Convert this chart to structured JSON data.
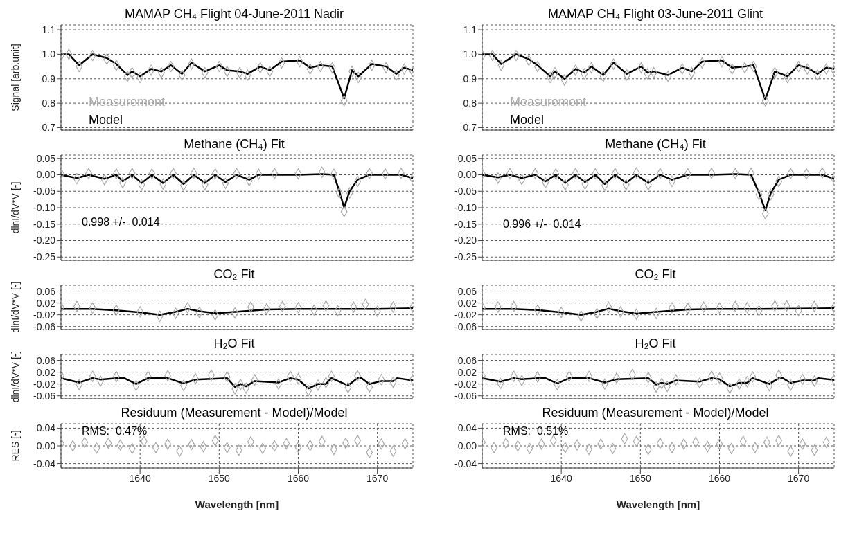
{
  "chart_data": [
    {
      "type": "line",
      "title": "MAMAP CH₄ Flight 04-June-2011 Nadir",
      "ylabel": "Signal [arb.unit]",
      "xlim": [
        1630,
        1674.5
      ],
      "xticks": [
        1640,
        1650,
        1660,
        1670
      ],
      "ylim": [
        0.69,
        1.12
      ],
      "yticks": [
        0.7,
        0.8,
        0.9,
        {
          "value": 1,
          "label": "1.0"
        },
        1.1
      ],
      "grid": true,
      "tick_labels": "y",
      "legend": "bottom left",
      "series": [
        {
          "name": "Measurement",
          "type": "scatter",
          "marker": "diamond",
          "color": "#a8a8a8",
          "x": [
            1630,
            1631,
            1632.3,
            1634,
            1635.8,
            1637,
            1638.4,
            1639,
            1640,
            1641.4,
            1642.7,
            1643.9,
            1645.3,
            1646.5,
            1648.2,
            1650,
            1651,
            1652.6,
            1653.6,
            1655.2,
            1656.4,
            1657.9,
            1660.2,
            1661.5,
            1662.8,
            1664.3,
            1665.8,
            1666.8,
            1667.6,
            1669.3,
            1671.1,
            1672.4,
            1673.4,
            1674.5
          ],
          "values": [
            0.995,
            1.0,
            0.95,
            0.995,
            0.98,
            0.955,
            0.91,
            0.925,
            0.905,
            0.935,
            0.925,
            0.95,
            0.915,
            0.96,
            0.925,
            0.95,
            0.93,
            0.925,
            0.915,
            0.945,
            0.93,
            0.965,
            0.97,
            0.94,
            0.95,
            0.945,
            0.81,
            0.93,
            0.905,
            0.955,
            0.945,
            0.915,
            0.94,
            0.93
          ]
        },
        {
          "name": "Model",
          "type": "line",
          "color": "#000000",
          "x": [
            1630,
            1631,
            1632.3,
            1634,
            1635.8,
            1637,
            1638.4,
            1639,
            1640,
            1641.4,
            1642.7,
            1643.9,
            1645.3,
            1646.5,
            1648.2,
            1650,
            1651,
            1652.6,
            1653.6,
            1655.2,
            1656.4,
            1657.9,
            1660.2,
            1661.5,
            1662.8,
            1664.3,
            1665.8,
            1666.8,
            1667.6,
            1669.3,
            1671.1,
            1672.4,
            1673.4,
            1674.5
          ],
          "values": [
            1.0,
            1.0,
            0.955,
            1.0,
            0.985,
            0.96,
            0.915,
            0.93,
            0.91,
            0.94,
            0.93,
            0.955,
            0.92,
            0.965,
            0.93,
            0.955,
            0.935,
            0.93,
            0.92,
            0.95,
            0.935,
            0.97,
            0.975,
            0.945,
            0.955,
            0.95,
            0.82,
            0.935,
            0.91,
            0.96,
            0.95,
            0.92,
            0.945,
            0.935
          ]
        }
      ]
    },
    {
      "type": "line",
      "title": "Methane (CH₄) Fit",
      "ylabel": "dlnI/dV*V [-]",
      "xlim": [
        1630,
        1674.5
      ],
      "xticks": [
        1640,
        1650,
        1660,
        1670
      ],
      "ylim": [
        -0.26,
        0.06
      ],
      "yticks": [
        0.05,
        {
          "value": 0,
          "label": "0.00"
        },
        -0.05,
        {
          "value": -0.1,
          "label": "-0.10"
        },
        -0.15,
        {
          "value": -0.2,
          "label": "-0.20"
        },
        -0.25
      ],
      "grid": true,
      "tick_labels": "y",
      "annotations": [
        "0.998 +/-  0.014"
      ],
      "series": [
        {
          "type": "scatter",
          "marker": "diamond",
          "color": "#a8a8a8",
          "x": [
            1630,
            1632,
            1633.5,
            1635.5,
            1637,
            1637.8,
            1639,
            1640.2,
            1641.5,
            1642.9,
            1644.2,
            1645.5,
            1646.8,
            1648.2,
            1649.5,
            1650.8,
            1652.2,
            1653.8,
            1655,
            1657,
            1660,
            1663,
            1664.5,
            1665.2,
            1665.8,
            1666.5,
            1667.5,
            1669,
            1671,
            1673,
            1674.5
          ],
          "values": [
            0.003,
            -0.012,
            0.004,
            -0.015,
            0.003,
            -0.024,
            0.004,
            -0.03,
            0.003,
            -0.028,
            0.004,
            -0.032,
            0.005,
            -0.03,
            0.003,
            -0.026,
            0.004,
            -0.018,
            0.002,
            0.004,
            0.003,
            0.008,
            0.002,
            -0.055,
            -0.112,
            -0.055,
            -0.02,
            0.004,
            0.003,
            0.005,
            -0.012
          ]
        },
        {
          "type": "line",
          "color": "#000000",
          "x": [
            1630,
            1632,
            1633.5,
            1635.5,
            1637,
            1637.8,
            1639,
            1640.2,
            1641.5,
            1642.9,
            1644.2,
            1645.5,
            1646.8,
            1648.2,
            1649.5,
            1650.8,
            1652.2,
            1653.8,
            1655,
            1657,
            1660,
            1663,
            1664.5,
            1665.2,
            1665.8,
            1666.5,
            1667.5,
            1669,
            1671,
            1673,
            1674.5
          ],
          "values": [
            0,
            -0.01,
            0,
            -0.012,
            0,
            -0.02,
            0,
            -0.025,
            0,
            -0.025,
            0,
            -0.028,
            0,
            -0.025,
            0,
            -0.022,
            0,
            -0.015,
            0,
            0,
            0,
            0.002,
            0,
            -0.05,
            -0.1,
            -0.05,
            -0.015,
            0,
            0,
            0,
            -0.01
          ]
        }
      ]
    },
    {
      "type": "line",
      "title": "CO₂ Fit",
      "ylabel": "dlnI/dV*V [-]",
      "xlim": [
        1630,
        1674.5
      ],
      "xticks": [
        1640,
        1650,
        1660,
        1670
      ],
      "ylim": [
        -0.07,
        0.08
      ],
      "yticks": [
        0.06,
        0.02,
        -0.02,
        -0.06
      ],
      "grid": true,
      "tick_labels": "y",
      "series": [
        {
          "type": "scatter",
          "marker": "diamond",
          "color": "#a8a8a8",
          "x": [
            1630,
            1632,
            1634,
            1637,
            1640,
            1642.5,
            1644.5,
            1646,
            1647.5,
            1649.5,
            1652,
            1654,
            1656,
            1658,
            1660,
            1662,
            1663.5,
            1665,
            1667,
            1668.5,
            1670,
            1672,
            1674.5
          ],
          "values": [
            0.005,
            0.008,
            0.003,
            -0.004,
            -0.01,
            -0.025,
            -0.015,
            0.004,
            -0.012,
            -0.02,
            -0.014,
            0.006,
            0.0,
            0.008,
            0.004,
            -0.004,
            0.01,
            -0.006,
            0.006,
            0.015,
            -0.008,
            0.006,
            0.005
          ]
        },
        {
          "type": "line",
          "color": "#000000",
          "x": [
            1630,
            1634,
            1637,
            1640,
            1642.5,
            1644.5,
            1646,
            1647.5,
            1649.5,
            1652,
            1656,
            1660,
            1665,
            1670,
            1674.5
          ],
          "values": [
            0,
            0,
            -0.005,
            -0.012,
            -0.02,
            -0.01,
            0,
            -0.008,
            -0.015,
            -0.01,
            -0.002,
            0,
            0,
            0,
            0.002
          ]
        }
      ]
    },
    {
      "type": "line",
      "title": "H₂O Fit",
      "ylabel": "dlnI/dV*V [-]",
      "xlim": [
        1630,
        1674.5
      ],
      "xticks": [
        1640,
        1650,
        1660,
        1670
      ],
      "ylim": [
        -0.07,
        0.08
      ],
      "yticks": [
        0.06,
        0.02,
        -0.02,
        -0.06
      ],
      "grid": true,
      "tick_labels": "y",
      "series": [
        {
          "type": "scatter",
          "marker": "diamond",
          "color": "#a8a8a8",
          "x": [
            1630,
            1632.3,
            1634,
            1635,
            1637,
            1639.5,
            1641,
            1643.5,
            1645.5,
            1647,
            1649,
            1651,
            1652,
            1652.7,
            1653.4,
            1654.5,
            1657.5,
            1659,
            1660,
            1661.3,
            1662.5,
            1663.5,
            1664.2,
            1666.3,
            1667.5,
            1669,
            1670.5,
            1672,
            1674.5
          ],
          "values": [
            0.008,
            -0.022,
            0.006,
            -0.01,
            0.005,
            -0.025,
            0.006,
            0.008,
            -0.025,
            -0.002,
            0.01,
            0.004,
            -0.036,
            -0.022,
            -0.034,
            -0.006,
            -0.02,
            0.006,
            -0.002,
            -0.042,
            -0.024,
            -0.015,
            0.006,
            -0.032,
            0.008,
            -0.03,
            -0.005,
            -0.014,
            -0.004
          ]
        },
        {
          "type": "line",
          "color": "#000000",
          "x": [
            1630,
            1632.3,
            1634,
            1635,
            1637,
            1638,
            1639.5,
            1641,
            1643.5,
            1645.5,
            1647,
            1651,
            1652,
            1652.7,
            1653.4,
            1654.5,
            1657.5,
            1659,
            1660,
            1661.3,
            1662.5,
            1663.5,
            1664.2,
            1666.3,
            1667.5,
            1668,
            1669,
            1670.5,
            1672,
            1672.5,
            1674.5
          ],
          "values": [
            0,
            -0.015,
            0,
            -0.005,
            0,
            0,
            -0.02,
            0,
            0,
            -0.018,
            -0.005,
            0,
            -0.03,
            -0.02,
            -0.028,
            -0.01,
            -0.015,
            0,
            -0.005,
            -0.035,
            -0.02,
            -0.02,
            0,
            -0.025,
            0,
            0,
            -0.02,
            -0.01,
            -0.01,
            0,
            -0.008
          ]
        }
      ]
    },
    {
      "type": "line",
      "title": "Residuum (Measurement - Model)/Model",
      "ylabel": "RES [-]",
      "xlabel": "Wavelength [nm]",
      "xlim": [
        1630,
        1674.5
      ],
      "xticks": [
        1640,
        1650,
        1660,
        1670
      ],
      "ylim": [
        -0.05,
        0.05
      ],
      "yticks": [
        0.04,
        {
          "value": 0,
          "label": "0.00"
        },
        -0.04
      ],
      "grid": true,
      "annotations": [
        "RMS:  0.47%"
      ],
      "series": [
        {
          "type": "scatter",
          "marker": "diamond",
          "color": "#a8a8a8",
          "x": [
            1630,
            1631.5,
            1633,
            1634.5,
            1636,
            1637.5,
            1639,
            1640.5,
            1642,
            1643.5,
            1645,
            1646.5,
            1648,
            1649.5,
            1651,
            1652.5,
            1654,
            1655.5,
            1657,
            1658.5,
            1660,
            1661.5,
            1663,
            1664.5,
            1666,
            1667.5,
            1669,
            1670.5,
            1672,
            1673.5
          ],
          "values": [
            0.005,
            0.0,
            0.008,
            -0.005,
            0.006,
            0.002,
            -0.006,
            0.01,
            -0.004,
            0.004,
            -0.012,
            0.003,
            -0.002,
            0.012,
            -0.004,
            -0.01,
            0.009,
            -0.006,
            0.0,
            0.005,
            -0.003,
            0.001,
            0.01,
            -0.008,
            0.006,
            0.012,
            -0.015,
            0.004,
            -0.012,
            0.005
          ]
        }
      ]
    },
    {
      "type": "line",
      "title": "MAMAP CH₄ Flight 03-June-2011 Glint",
      "xlim": [
        1630,
        1674.5
      ],
      "xticks": [
        1640,
        1650,
        1660,
        1670
      ],
      "ylim": [
        0.69,
        1.12
      ],
      "yticks": [
        0.7,
        0.8,
        0.9,
        {
          "value": 1,
          "label": "1.0"
        },
        1.1
      ],
      "grid": true,
      "tick_labels": "y",
      "legend": "bottom left",
      "series": [
        {
          "name": "Measurement",
          "type": "scatter",
          "marker": "diamond",
          "color": "#a8a8a8",
          "x": [
            1630,
            1631.3,
            1632.4,
            1634.3,
            1635.9,
            1637,
            1638.6,
            1639.2,
            1640.4,
            1641.8,
            1642.9,
            1643.8,
            1645.3,
            1646.6,
            1648.3,
            1650.1,
            1650.9,
            1651.7,
            1653.5,
            1655.3,
            1656.5,
            1657.8,
            1660.3,
            1661.6,
            1663.2,
            1664.3,
            1665.8,
            1667,
            1668.6,
            1670,
            1671.1,
            1672.4,
            1673.5,
            1674.5
          ],
          "values": [
            0.995,
            0.995,
            0.955,
            0.995,
            0.975,
            0.95,
            0.905,
            0.925,
            0.895,
            0.935,
            0.92,
            0.945,
            0.91,
            0.96,
            0.915,
            0.945,
            0.92,
            0.925,
            0.91,
            0.94,
            0.925,
            0.965,
            0.97,
            0.94,
            0.945,
            0.95,
            0.81,
            0.925,
            0.905,
            0.95,
            0.94,
            0.915,
            0.94,
            0.935
          ]
        },
        {
          "name": "Model",
          "type": "line",
          "color": "#000000",
          "x": [
            1630,
            1631.3,
            1632.4,
            1634.3,
            1635.9,
            1637,
            1638.6,
            1639.2,
            1640.4,
            1641.8,
            1642.9,
            1643.8,
            1645.3,
            1646.6,
            1648.3,
            1650.1,
            1650.9,
            1651.7,
            1653.5,
            1655.3,
            1656.5,
            1657.8,
            1660.3,
            1661.6,
            1663.2,
            1664.3,
            1665.8,
            1667,
            1668.6,
            1670,
            1671.1,
            1672.4,
            1673.5,
            1674.5
          ],
          "values": [
            1.0,
            1.0,
            0.96,
            1.0,
            0.98,
            0.955,
            0.91,
            0.93,
            0.9,
            0.94,
            0.925,
            0.95,
            0.915,
            0.965,
            0.92,
            0.95,
            0.925,
            0.93,
            0.915,
            0.945,
            0.93,
            0.97,
            0.975,
            0.945,
            0.95,
            0.955,
            0.815,
            0.93,
            0.91,
            0.955,
            0.945,
            0.92,
            0.945,
            0.94
          ]
        }
      ]
    },
    {
      "type": "line",
      "title": "Methane (CH₄) Fit",
      "xlim": [
        1630,
        1674.5
      ],
      "xticks": [
        1640,
        1650,
        1660,
        1670
      ],
      "ylim": [
        -0.26,
        0.06
      ],
      "yticks": [
        0.05,
        {
          "value": 0,
          "label": "0.00"
        },
        -0.05,
        {
          "value": -0.1,
          "label": "-0.10"
        },
        -0.15,
        {
          "value": -0.2,
          "label": "-0.20"
        },
        -0.25
      ],
      "grid": true,
      "tick_labels": "y",
      "annotations": [
        "0.996 +/-  0.014"
      ],
      "series": [
        {
          "type": "scatter",
          "marker": "diamond",
          "color": "#a8a8a8",
          "x": [
            1630,
            1632,
            1633.5,
            1635,
            1636.7,
            1638,
            1639.3,
            1640.5,
            1641.8,
            1643,
            1644.3,
            1645.5,
            1646.8,
            1648.2,
            1649.5,
            1651,
            1652.5,
            1654,
            1656,
            1659,
            1662,
            1664,
            1665,
            1665.8,
            1666.5,
            1667.5,
            1669,
            1671,
            1673,
            1674.5
          ],
          "values": [
            0.003,
            -0.01,
            0.004,
            -0.014,
            0.004,
            -0.024,
            0.003,
            -0.03,
            0.004,
            -0.028,
            0.003,
            -0.032,
            0.004,
            -0.03,
            0.006,
            -0.03,
            0.004,
            -0.02,
            0.003,
            0.005,
            0.004,
            0.005,
            -0.06,
            -0.118,
            -0.06,
            -0.02,
            0.004,
            0.003,
            0.006,
            -0.012
          ]
        },
        {
          "type": "line",
          "color": "#000000",
          "x": [
            1630,
            1632,
            1633.5,
            1635,
            1636.7,
            1638,
            1639.3,
            1640.5,
            1641.8,
            1643,
            1644.3,
            1645.5,
            1646.8,
            1648.2,
            1649.5,
            1651,
            1652.5,
            1654,
            1656,
            1659,
            1662,
            1664,
            1665,
            1665.8,
            1666.5,
            1667.5,
            1669,
            1671,
            1673,
            1674.5
          ],
          "values": [
            0,
            -0.008,
            0,
            -0.01,
            0,
            -0.02,
            0,
            -0.025,
            0,
            -0.022,
            0,
            -0.028,
            0,
            -0.025,
            0,
            -0.025,
            0,
            -0.015,
            0,
            0,
            0.002,
            0,
            -0.055,
            -0.108,
            -0.055,
            -0.015,
            0,
            0,
            0,
            -0.012
          ]
        }
      ]
    },
    {
      "type": "line",
      "title": "CO₂ Fit",
      "xlim": [
        1630,
        1674.5
      ],
      "xticks": [
        1640,
        1650,
        1660,
        1670
      ],
      "ylim": [
        -0.07,
        0.08
      ],
      "yticks": [
        0.06,
        0.02,
        -0.02,
        -0.06
      ],
      "grid": true,
      "tick_labels": "y",
      "series": [
        {
          "type": "scatter",
          "marker": "diamond",
          "color": "#a8a8a8",
          "x": [
            1630,
            1632,
            1634,
            1637,
            1640,
            1642.5,
            1644.5,
            1646,
            1647.5,
            1649.5,
            1652,
            1654,
            1656,
            1658,
            1660,
            1662,
            1663.5,
            1665,
            1667,
            1668.5,
            1670,
            1672,
            1674.5
          ],
          "values": [
            0.004,
            0.006,
            0.008,
            -0.004,
            -0.012,
            -0.024,
            -0.016,
            0.005,
            -0.01,
            -0.018,
            -0.016,
            0.004,
            0.002,
            0.006,
            0.003,
            0.008,
            0.004,
            -0.006,
            0.01,
            0.01,
            -0.006,
            0.008,
            0.004
          ]
        },
        {
          "type": "line",
          "color": "#000000",
          "x": [
            1630,
            1634,
            1637,
            1640,
            1642.5,
            1644.5,
            1646,
            1647.5,
            1649.5,
            1652,
            1656,
            1660,
            1665,
            1670,
            1674.5
          ],
          "values": [
            0,
            0,
            -0.004,
            -0.012,
            -0.02,
            -0.01,
            0.001,
            -0.008,
            -0.016,
            -0.01,
            -0.002,
            0,
            0,
            0.001,
            0.002
          ]
        }
      ]
    },
    {
      "type": "line",
      "title": "H₂O Fit",
      "xlim": [
        1630,
        1674.5
      ],
      "xticks": [
        1640,
        1650,
        1660,
        1670
      ],
      "ylim": [
        -0.07,
        0.08
      ],
      "yticks": [
        0.06,
        0.02,
        -0.02,
        -0.06
      ],
      "grid": true,
      "tick_labels": "y",
      "series": [
        {
          "type": "scatter",
          "marker": "diamond",
          "color": "#a8a8a8",
          "x": [
            1630,
            1632.3,
            1634,
            1635,
            1637,
            1639.5,
            1641,
            1643.5,
            1645.5,
            1647,
            1649,
            1651,
            1652,
            1652.7,
            1653.4,
            1654.5,
            1657.5,
            1659,
            1660,
            1661.3,
            1662.5,
            1663.5,
            1664.2,
            1666.3,
            1667.5,
            1669,
            1670.5,
            1672,
            1674.5
          ],
          "values": [
            0.008,
            -0.018,
            0.006,
            -0.008,
            0.004,
            -0.022,
            0.006,
            0.006,
            -0.02,
            0.0,
            0.012,
            0.002,
            -0.03,
            -0.018,
            -0.028,
            -0.006,
            -0.016,
            0.006,
            0.0,
            -0.034,
            -0.02,
            -0.012,
            0.004,
            -0.026,
            0.01,
            -0.024,
            -0.004,
            -0.01,
            -0.004
          ]
        },
        {
          "type": "line",
          "color": "#000000",
          "x": [
            1630,
            1632.3,
            1634,
            1635,
            1637,
            1638,
            1639.5,
            1641,
            1643.5,
            1645.5,
            1647,
            1651,
            1652,
            1652.7,
            1653.4,
            1654.5,
            1657.5,
            1659,
            1660,
            1661.3,
            1662.5,
            1663.5,
            1664.2,
            1666.3,
            1667.5,
            1668,
            1669,
            1670.5,
            1672,
            1672.5,
            1674.5
          ],
          "values": [
            0,
            -0.012,
            0,
            -0.004,
            0,
            0,
            -0.018,
            0,
            0,
            -0.015,
            -0.004,
            0,
            -0.022,
            -0.016,
            -0.02,
            -0.008,
            -0.012,
            0,
            -0.004,
            -0.028,
            -0.016,
            -0.016,
            0,
            -0.02,
            0,
            0,
            -0.016,
            -0.008,
            -0.008,
            0,
            -0.006
          ]
        }
      ]
    },
    {
      "type": "line",
      "title": "Residuum (Measurement - Model)/Model",
      "xlabel": "Wavelength [nm]",
      "xlim": [
        1630,
        1674.5
      ],
      "xticks": [
        1640,
        1650,
        1660,
        1670
      ],
      "ylim": [
        -0.05,
        0.05
      ],
      "yticks": [
        0.04,
        {
          "value": 0,
          "label": "0.00"
        },
        -0.04
      ],
      "grid": true,
      "annotations": [
        "RMS:  0.51%"
      ],
      "series": [
        {
          "type": "scatter",
          "marker": "diamond",
          "color": "#a8a8a8",
          "x": [
            1630,
            1631.5,
            1633,
            1634.5,
            1636,
            1637.5,
            1639,
            1640.5,
            1642,
            1643.5,
            1645,
            1646.5,
            1648,
            1649.5,
            1651,
            1652.5,
            1654,
            1655.5,
            1657,
            1658.5,
            1660,
            1661.5,
            1663,
            1664.5,
            1666,
            1667.5,
            1669,
            1670.5,
            1672,
            1673.5
          ],
          "values": [
            0.008,
            -0.004,
            0.006,
            0.0,
            -0.006,
            0.004,
            0.012,
            -0.004,
            0.002,
            -0.008,
            0.004,
            -0.006,
            0.016,
            0.01,
            -0.008,
            0.006,
            -0.004,
            0.004,
            0.008,
            -0.002,
            0.004,
            -0.006,
            0.01,
            -0.004,
            0.008,
            0.012,
            -0.012,
            0.004,
            -0.01,
            0.008
          ]
        }
      ]
    }
  ]
}
